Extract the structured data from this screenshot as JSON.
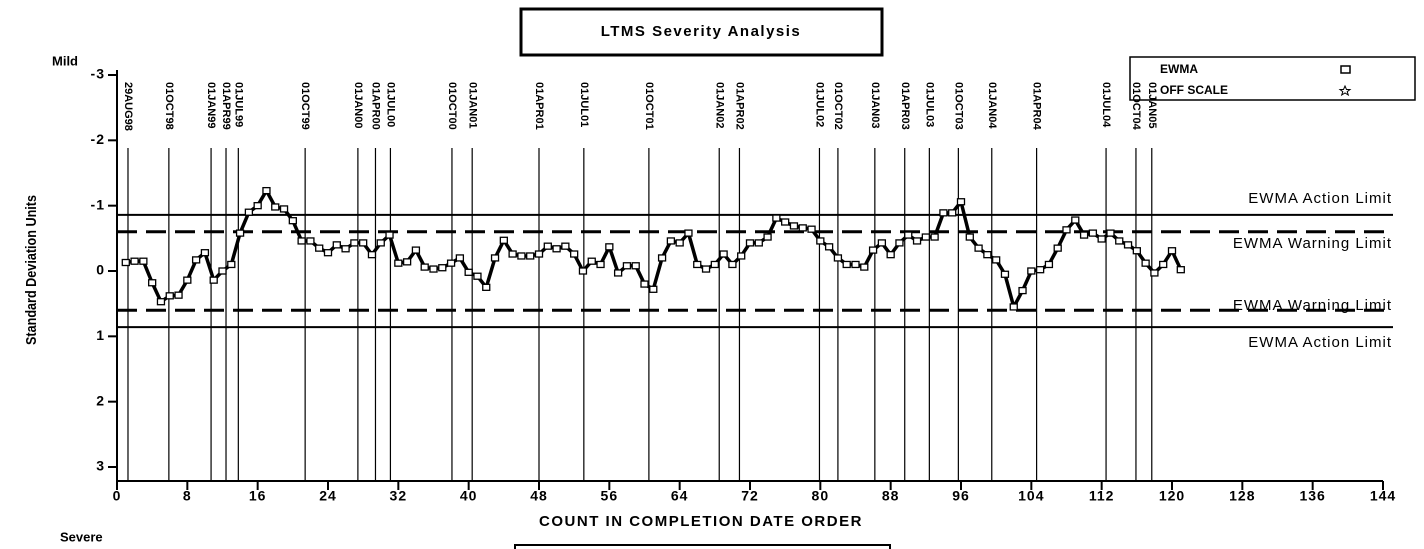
{
  "chart_data": {
    "type": "line",
    "title": "LTMS Severity Analysis",
    "x_label": "COUNT IN COMPLETION DATE ORDER",
    "y_label": "Standard Deviation Units",
    "top_note": "Mild",
    "bottom_note": "Severe",
    "xlim": [
      0,
      144
    ],
    "xticks": [
      0,
      8,
      16,
      24,
      32,
      40,
      48,
      56,
      64,
      72,
      80,
      88,
      96,
      104,
      112,
      120,
      128,
      136,
      144
    ],
    "ylim": [
      3,
      -3
    ],
    "yticks": [
      -3,
      -2,
      -1,
      0,
      1,
      2,
      3
    ],
    "legend": {
      "position": "top-right",
      "entries": [
        "EWMA",
        "OFF SCALE"
      ]
    },
    "series": [
      {
        "name": "EWMA",
        "color": "#000000",
        "x": [
          1,
          2,
          3,
          4,
          5,
          6,
          7,
          8,
          9,
          10,
          11,
          12,
          13,
          14,
          15,
          16,
          17,
          18,
          19,
          20,
          21,
          22,
          23,
          24,
          25,
          26,
          27,
          28,
          29,
          30,
          31,
          32,
          33,
          34,
          35,
          36,
          37,
          38,
          39,
          40,
          41,
          42,
          43,
          44,
          45,
          46,
          47,
          48,
          49,
          50,
          51,
          52,
          53,
          54,
          55,
          56,
          57,
          58,
          59,
          60,
          61,
          62,
          63,
          64,
          65,
          66,
          67,
          68,
          69,
          70,
          71,
          72,
          73,
          74,
          75,
          76,
          77,
          78,
          79,
          80,
          81,
          82,
          83,
          84,
          85,
          86,
          87,
          88,
          89,
          90,
          91,
          92,
          93,
          94,
          95,
          96,
          97,
          98,
          99,
          100,
          101,
          102,
          103,
          104,
          105,
          106,
          107,
          108,
          109,
          110,
          111,
          112,
          113,
          114,
          115,
          116,
          117,
          118,
          119,
          120,
          121
        ],
        "values": [
          -0.13,
          -0.15,
          -0.15,
          0.18,
          0.47,
          0.38,
          0.37,
          0.14,
          -0.17,
          -0.28,
          0.14,
          0,
          -0.1,
          -0.58,
          -0.9,
          -1.0,
          -1.23,
          -0.98,
          -0.95,
          -0.77,
          -0.46,
          -0.46,
          -0.35,
          -0.28,
          -0.4,
          -0.34,
          -0.43,
          -0.43,
          -0.25,
          -0.43,
          -0.55,
          -0.12,
          -0.14,
          -0.32,
          -0.06,
          -0.03,
          -0.05,
          -0.12,
          -0.2,
          0.02,
          0.08,
          0.25,
          -0.2,
          -0.47,
          -0.26,
          -0.23,
          -0.23,
          -0.26,
          -0.38,
          -0.34,
          -0.38,
          -0.26,
          0,
          -0.15,
          -0.1,
          -0.37,
          0.03,
          -0.08,
          -0.08,
          0.2,
          0.28,
          -0.2,
          -0.46,
          -0.43,
          -0.58,
          -0.1,
          -0.03,
          -0.1,
          -0.26,
          -0.1,
          -0.23,
          -0.43,
          -0.43,
          -0.52,
          -0.81,
          -0.75,
          -0.69,
          -0.66,
          -0.64,
          -0.46,
          -0.37,
          -0.2,
          -0.1,
          -0.1,
          -0.06,
          -0.32,
          -0.43,
          -0.25,
          -0.43,
          -0.55,
          -0.46,
          -0.52,
          -0.52,
          -0.89,
          -0.89,
          -1.06,
          -0.52,
          -0.35,
          -0.25,
          -0.17,
          0.05,
          0.55,
          0.3,
          0,
          -0.02,
          -0.1,
          -0.35,
          -0.63,
          -0.78,
          -0.55,
          -0.58,
          -0.49,
          -0.58,
          -0.46,
          -0.4,
          -0.31,
          -0.12,
          0.03,
          -0.1,
          -0.31,
          -0.02
        ]
      }
    ],
    "hlines": [
      {
        "label": "EWMA Action Limit",
        "y": -0.86,
        "style": "solid"
      },
      {
        "label": "EWMA Warning Limit",
        "y": -0.6,
        "style": "dashed"
      },
      {
        "label": "EWMA Warning Limit",
        "y": 0.6,
        "style": "dashed"
      },
      {
        "label": "EWMA Action Limit",
        "y": 0.86,
        "style": "solid"
      }
    ],
    "date_lines": [
      {
        "label": "29AUG98",
        "x": 1.25
      },
      {
        "label": "01OCT98",
        "x": 5.9
      },
      {
        "label": "01JAN99",
        "x": 10.7
      },
      {
        "label": "01APR99",
        "x": 12.4
      },
      {
        "label": "01JUL99",
        "x": 13.8
      },
      {
        "label": "01OCT99",
        "x": 21.4
      },
      {
        "label": "01JAN00",
        "x": 27.4
      },
      {
        "label": "01APR00",
        "x": 29.4
      },
      {
        "label": "01JUL00",
        "x": 31.1
      },
      {
        "label": "01OCT00",
        "x": 38.1
      },
      {
        "label": "01JAN01",
        "x": 40.4
      },
      {
        "label": "01APR01",
        "x": 48.0
      },
      {
        "label": "01JUL01",
        "x": 53.1
      },
      {
        "label": "01OCT01",
        "x": 60.5
      },
      {
        "label": "01JAN02",
        "x": 68.5
      },
      {
        "label": "01APR02",
        "x": 70.8
      },
      {
        "label": "01JUL02",
        "x": 79.9
      },
      {
        "label": "01OCT02",
        "x": 82.0
      },
      {
        "label": "01JAN03",
        "x": 86.2
      },
      {
        "label": "01APR03",
        "x": 89.6
      },
      {
        "label": "01JUL03",
        "x": 92.4
      },
      {
        "label": "01OCT03",
        "x": 95.7
      },
      {
        "label": "01JAN04",
        "x": 99.5
      },
      {
        "label": "01APR04",
        "x": 104.6
      },
      {
        "label": "01JUL04",
        "x": 112.5
      },
      {
        "label": "01OCT04",
        "x": 115.9
      },
      {
        "label": "01JAN05",
        "x": 117.7
      }
    ]
  }
}
